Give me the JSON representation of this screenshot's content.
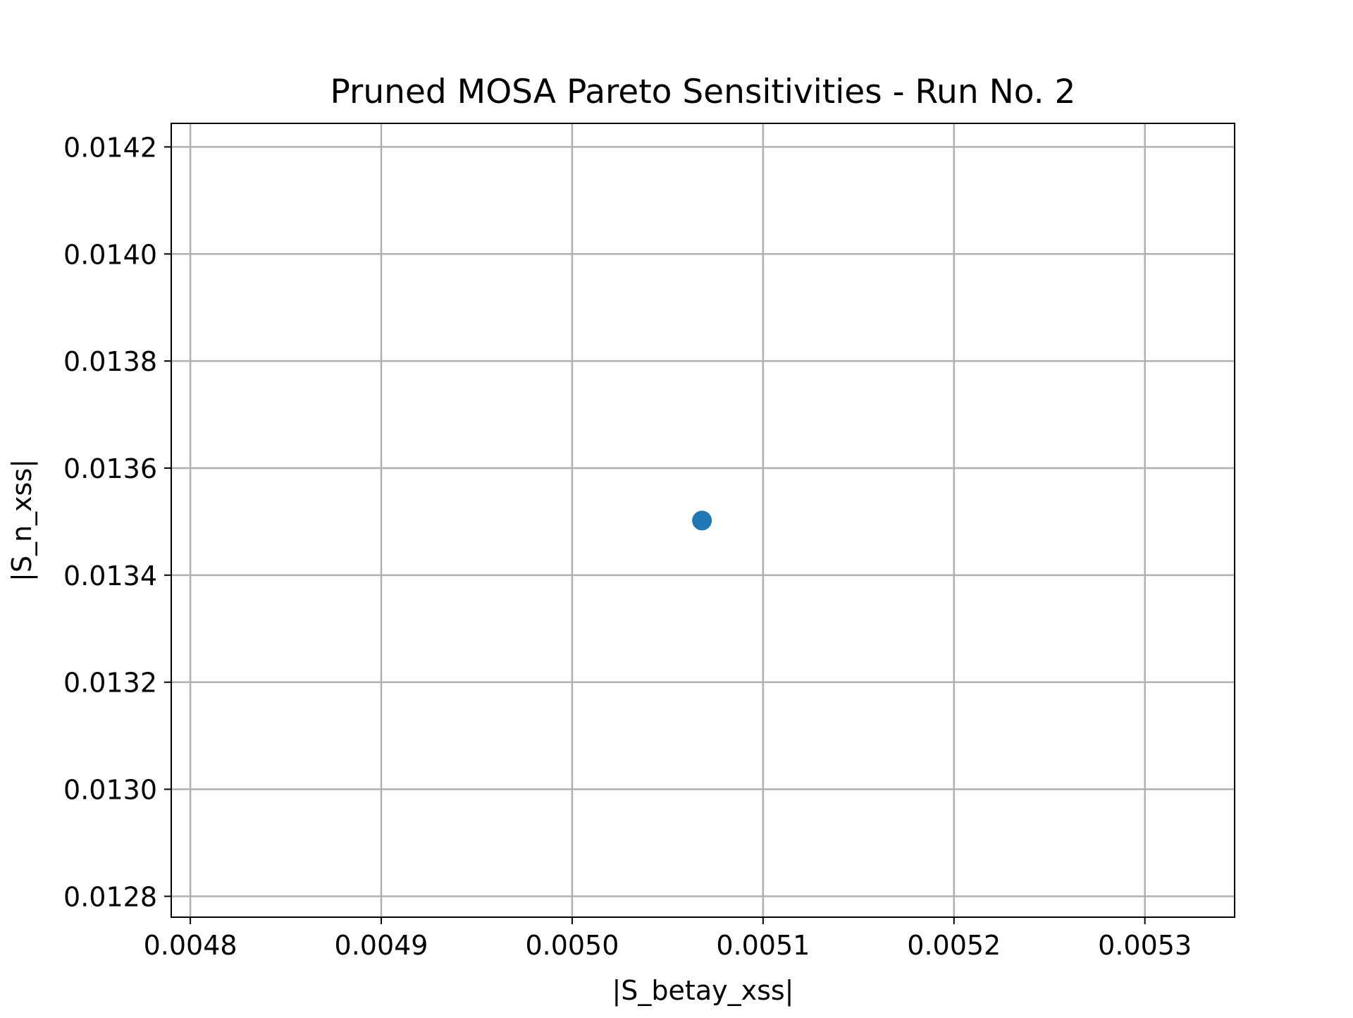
{
  "chart_data": {
    "type": "scatter",
    "title": "Pruned MOSA Pareto Sensitivities - Run No. 2",
    "xlabel": "|S_betay_xss|",
    "ylabel": "|S_n_xss|",
    "xlim": [
      0.00479,
      0.005347
    ],
    "ylim": [
      0.012761,
      0.014244
    ],
    "x_ticks": [
      "0.0048",
      "0.0049",
      "0.0050",
      "0.0051",
      "0.0052",
      "0.0053"
    ],
    "y_ticks": [
      "0.0128",
      "0.0130",
      "0.0132",
      "0.0134",
      "0.0136",
      "0.0138",
      "0.0140",
      "0.0142"
    ],
    "grid": true,
    "series": [
      {
        "color": "#1f77b4",
        "points": [
          {
            "x": 0.005068,
            "y": 0.013502
          }
        ]
      }
    ]
  }
}
